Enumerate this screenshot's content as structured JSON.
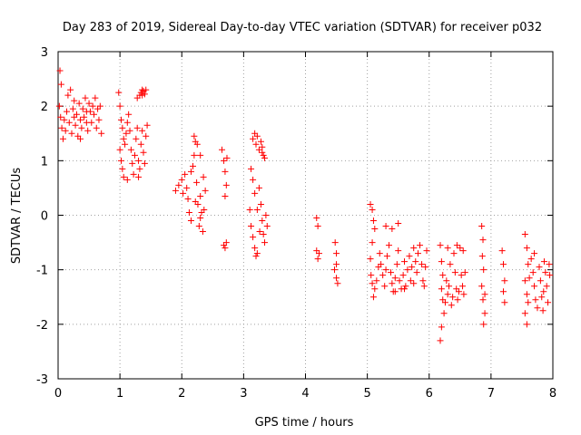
{
  "chart_data": {
    "type": "scatter",
    "title": "Day 283 of 2019, Sidereal Day-to-day VTEC variation (SDTVAR) for receiver p032",
    "xlabel": "GPS time / hours",
    "ylabel": "SDTVAR / TECUs",
    "xlim": [
      0,
      8
    ],
    "ylim": [
      -3,
      3
    ],
    "xticks": [
      "0",
      "1",
      "2",
      "3",
      "4",
      "5",
      "6",
      "7",
      "8"
    ],
    "yticks": [
      "3",
      "2",
      "1",
      "0",
      "-1",
      "-2",
      "-3"
    ],
    "grid": true,
    "marker": "+",
    "color": "#ff0000",
    "series": [
      {
        "name": "SDTVAR",
        "points": [
          [
            0.03,
            2.65
          ],
          [
            0.05,
            2.4
          ],
          [
            0.02,
            2.0
          ],
          [
            0.04,
            1.8
          ],
          [
            0.06,
            1.6
          ],
          [
            0.08,
            1.4
          ],
          [
            0.1,
            1.75
          ],
          [
            0.12,
            1.55
          ],
          [
            0.14,
            1.9
          ],
          [
            0.16,
            2.2
          ],
          [
            0.18,
            1.7
          ],
          [
            0.2,
            2.3
          ],
          [
            0.22,
            1.5
          ],
          [
            0.24,
            1.95
          ],
          [
            0.26,
            2.1
          ],
          [
            0.28,
            1.65
          ],
          [
            0.3,
            1.85
          ],
          [
            0.32,
            1.45
          ],
          [
            0.34,
            2.05
          ],
          [
            0.36,
            1.75
          ],
          [
            0.38,
            1.6
          ],
          [
            0.4,
            1.95
          ],
          [
            0.42,
            1.8
          ],
          [
            0.44,
            2.15
          ],
          [
            0.46,
            1.7
          ],
          [
            0.48,
            1.55
          ],
          [
            0.5,
            2.05
          ],
          [
            0.52,
            1.9
          ],
          [
            0.54,
            1.7
          ],
          [
            0.56,
            2.0
          ],
          [
            0.58,
            1.85
          ],
          [
            0.6,
            2.15
          ],
          [
            0.62,
            1.6
          ],
          [
            0.64,
            1.95
          ],
          [
            0.66,
            1.75
          ],
          [
            0.68,
            2.0
          ],
          [
            0.7,
            1.5
          ],
          [
            0.36,
            1.4
          ],
          [
            0.26,
            1.8
          ],
          [
            0.46,
            1.9
          ],
          [
            0.98,
            2.25
          ],
          [
            1.0,
            2.0
          ],
          [
            1.02,
            1.75
          ],
          [
            1.04,
            1.6
          ],
          [
            1.06,
            1.4
          ],
          [
            1.0,
            1.2
          ],
          [
            1.02,
            1.0
          ],
          [
            1.04,
            0.85
          ],
          [
            1.06,
            0.7
          ],
          [
            1.08,
            1.3
          ],
          [
            1.1,
            1.5
          ],
          [
            1.12,
            1.7
          ],
          [
            1.14,
            1.85
          ],
          [
            1.16,
            1.55
          ],
          [
            1.18,
            1.2
          ],
          [
            1.2,
            0.95
          ],
          [
            1.22,
            0.75
          ],
          [
            1.24,
            1.1
          ],
          [
            1.26,
            1.4
          ],
          [
            1.28,
            1.6
          ],
          [
            1.3,
            1.0
          ],
          [
            1.32,
            0.85
          ],
          [
            1.34,
            1.3
          ],
          [
            1.36,
            1.55
          ],
          [
            1.38,
            1.15
          ],
          [
            1.4,
            0.95
          ],
          [
            1.42,
            1.45
          ],
          [
            1.44,
            1.65
          ],
          [
            1.12,
            0.65
          ],
          [
            1.3,
            0.7
          ],
          [
            1.32,
            2.2
          ],
          [
            1.34,
            2.25
          ],
          [
            1.36,
            2.3
          ],
          [
            1.38,
            2.28
          ],
          [
            1.4,
            2.22
          ],
          [
            1.42,
            2.3
          ],
          [
            1.28,
            2.15
          ],
          [
            1.36,
            2.2
          ],
          [
            1.9,
            0.45
          ],
          [
            1.95,
            0.55
          ],
          [
            2.0,
            0.65
          ],
          [
            2.02,
            0.4
          ],
          [
            2.05,
            0.75
          ],
          [
            2.08,
            0.5
          ],
          [
            2.1,
            0.3
          ],
          [
            2.12,
            0.05
          ],
          [
            2.15,
            -0.1
          ],
          [
            2.18,
            0.9
          ],
          [
            2.2,
            1.1
          ],
          [
            2.22,
            1.35
          ],
          [
            2.24,
            0.6
          ],
          [
            2.26,
            0.2
          ],
          [
            2.28,
            -0.2
          ],
          [
            2.3,
            0.35
          ],
          [
            2.32,
            0.05
          ],
          [
            2.34,
            -0.3
          ],
          [
            2.36,
            0.1
          ],
          [
            2.38,
            0.45
          ],
          [
            2.2,
            1.45
          ],
          [
            2.25,
            1.3
          ],
          [
            2.3,
            1.1
          ],
          [
            2.35,
            0.7
          ],
          [
            2.15,
            0.8
          ],
          [
            2.22,
            0.25
          ],
          [
            2.3,
            -0.05
          ],
          [
            2.65,
            1.2
          ],
          [
            2.68,
            1.0
          ],
          [
            2.7,
            0.8
          ],
          [
            2.72,
            0.55
          ],
          [
            2.7,
            0.35
          ],
          [
            2.73,
            1.05
          ],
          [
            2.68,
            -0.55
          ],
          [
            2.7,
            -0.6
          ],
          [
            2.72,
            -0.5
          ],
          [
            3.15,
            1.4
          ],
          [
            3.18,
            1.5
          ],
          [
            3.2,
            1.3
          ],
          [
            3.22,
            1.45
          ],
          [
            3.25,
            1.2
          ],
          [
            3.28,
            1.35
          ],
          [
            3.3,
            1.15
          ],
          [
            3.32,
            1.1
          ],
          [
            3.34,
            1.05
          ],
          [
            3.3,
            1.25
          ],
          [
            3.12,
            0.85
          ],
          [
            3.15,
            0.65
          ],
          [
            3.18,
            0.4
          ],
          [
            3.1,
            0.1
          ],
          [
            3.12,
            -0.2
          ],
          [
            3.15,
            -0.4
          ],
          [
            3.18,
            -0.6
          ],
          [
            3.2,
            -0.75
          ],
          [
            3.22,
            0.1
          ],
          [
            3.25,
            0.5
          ],
          [
            3.28,
            0.2
          ],
          [
            3.3,
            -0.1
          ],
          [
            3.32,
            -0.35
          ],
          [
            3.34,
            -0.5
          ],
          [
            3.36,
            0.0
          ],
          [
            3.38,
            -0.2
          ],
          [
            3.26,
            -0.3
          ],
          [
            3.22,
            -0.7
          ],
          [
            4.18,
            -0.05
          ],
          [
            4.2,
            -0.2
          ],
          [
            4.18,
            -0.65
          ],
          [
            4.2,
            -0.8
          ],
          [
            4.22,
            -0.7
          ],
          [
            4.48,
            -0.5
          ],
          [
            4.5,
            -0.7
          ],
          [
            4.47,
            -1.0
          ],
          [
            4.5,
            -1.15
          ],
          [
            4.52,
            -1.25
          ],
          [
            4.5,
            -0.9
          ],
          [
            5.05,
            0.2
          ],
          [
            5.08,
            0.1
          ],
          [
            5.1,
            -0.1
          ],
          [
            5.12,
            -0.25
          ],
          [
            5.08,
            -0.5
          ],
          [
            5.05,
            -0.8
          ],
          [
            5.06,
            -1.1
          ],
          [
            5.08,
            -1.25
          ],
          [
            5.1,
            -1.5
          ],
          [
            5.12,
            -1.35
          ],
          [
            5.15,
            -1.2
          ],
          [
            5.18,
            -0.95
          ],
          [
            5.2,
            -0.7
          ],
          [
            5.22,
            -0.9
          ],
          [
            5.25,
            -1.1
          ],
          [
            5.28,
            -1.3
          ],
          [
            5.3,
            -1.0
          ],
          [
            5.32,
            -0.75
          ],
          [
            5.35,
            -0.55
          ],
          [
            5.38,
            -1.05
          ],
          [
            5.4,
            -1.25
          ],
          [
            5.42,
            -1.4
          ],
          [
            5.45,
            -1.15
          ],
          [
            5.48,
            -0.9
          ],
          [
            5.5,
            -0.65
          ],
          [
            5.52,
            -1.2
          ],
          [
            5.55,
            -1.35
          ],
          [
            5.58,
            -1.1
          ],
          [
            5.6,
            -0.85
          ],
          [
            5.62,
            -1.3
          ],
          [
            5.65,
            -1.0
          ],
          [
            5.68,
            -0.75
          ],
          [
            5.7,
            -1.2
          ],
          [
            5.72,
            -0.95
          ],
          [
            5.75,
            -0.6
          ],
          [
            5.78,
            -0.85
          ],
          [
            5.8,
            -1.05
          ],
          [
            5.82,
            -0.7
          ],
          [
            5.85,
            -0.55
          ],
          [
            5.88,
            -0.9
          ],
          [
            5.9,
            -1.2
          ],
          [
            5.92,
            -1.3
          ],
          [
            5.94,
            -0.95
          ],
          [
            5.96,
            -0.65
          ],
          [
            5.3,
            -0.2
          ],
          [
            5.4,
            -0.25
          ],
          [
            5.5,
            -0.15
          ],
          [
            5.45,
            -1.4
          ],
          [
            5.6,
            -1.35
          ],
          [
            5.75,
            -1.25
          ],
          [
            6.18,
            -0.55
          ],
          [
            6.2,
            -0.85
          ],
          [
            6.22,
            -1.1
          ],
          [
            6.2,
            -1.35
          ],
          [
            6.22,
            -1.55
          ],
          [
            6.24,
            -1.8
          ],
          [
            6.2,
            -2.05
          ],
          [
            6.18,
            -2.3
          ],
          [
            6.26,
            -1.6
          ],
          [
            6.28,
            -1.2
          ],
          [
            6.3,
            -1.45
          ],
          [
            6.32,
            -1.3
          ],
          [
            6.34,
            -0.9
          ],
          [
            6.36,
            -1.65
          ],
          [
            6.38,
            -1.5
          ],
          [
            6.4,
            -0.7
          ],
          [
            6.42,
            -1.05
          ],
          [
            6.44,
            -1.35
          ],
          [
            6.46,
            -1.55
          ],
          [
            6.48,
            -1.4
          ],
          [
            6.5,
            -0.6
          ],
          [
            6.52,
            -1.1
          ],
          [
            6.54,
            -1.3
          ],
          [
            6.56,
            -1.45
          ],
          [
            6.58,
            -1.05
          ],
          [
            6.3,
            -0.6
          ],
          [
            6.45,
            -0.55
          ],
          [
            6.55,
            -0.65
          ],
          [
            6.85,
            -0.2
          ],
          [
            6.87,
            -0.45
          ],
          [
            6.86,
            -0.75
          ],
          [
            6.88,
            -1.0
          ],
          [
            6.85,
            -1.3
          ],
          [
            6.87,
            -1.55
          ],
          [
            6.9,
            -1.8
          ],
          [
            6.88,
            -2.0
          ],
          [
            6.9,
            -1.45
          ],
          [
            7.18,
            -0.65
          ],
          [
            7.2,
            -0.9
          ],
          [
            7.22,
            -1.2
          ],
          [
            7.2,
            -1.4
          ],
          [
            7.22,
            -1.6
          ],
          [
            7.55,
            -0.35
          ],
          [
            7.58,
            -0.6
          ],
          [
            7.6,
            -0.9
          ],
          [
            7.55,
            -1.2
          ],
          [
            7.58,
            -1.45
          ],
          [
            7.6,
            -1.6
          ],
          [
            7.55,
            -1.8
          ],
          [
            7.58,
            -2.0
          ],
          [
            7.62,
            -1.15
          ],
          [
            7.65,
            -0.8
          ],
          [
            7.68,
            -1.05
          ],
          [
            7.7,
            -1.3
          ],
          [
            7.72,
            -1.55
          ],
          [
            7.75,
            -1.7
          ],
          [
            7.78,
            -0.95
          ],
          [
            7.8,
            -1.2
          ],
          [
            7.82,
            -1.5
          ],
          [
            7.84,
            -1.75
          ],
          [
            7.86,
            -0.85
          ],
          [
            7.88,
            -1.05
          ],
          [
            7.9,
            -1.3
          ],
          [
            7.92,
            -1.6
          ],
          [
            7.94,
            -0.9
          ],
          [
            7.95,
            -1.1
          ],
          [
            7.7,
            -0.7
          ],
          [
            7.85,
            -1.4
          ]
        ]
      }
    ]
  }
}
